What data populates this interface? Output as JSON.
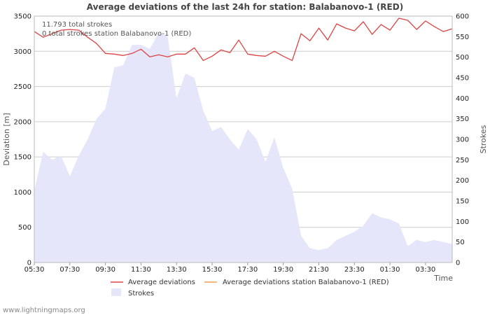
{
  "chart_data": {
    "type": "line",
    "title": "Average deviations of the last 24h for station: Balabanovo-1 (RED)",
    "xlabel": "Time",
    "ylabel_left": "Deviation  [m]",
    "ylabel_right": "Strokes",
    "ylim_left": [
      0,
      3500
    ],
    "ylim_right": [
      0,
      600
    ],
    "yticks_left": [
      "0",
      "500",
      "1000",
      "1500",
      "2000",
      "2500",
      "3000",
      "3500"
    ],
    "yticks_right": [
      "0",
      "50",
      "100",
      "150",
      "200",
      "250",
      "300",
      "350",
      "400",
      "450",
      "500",
      "550",
      "600"
    ],
    "xticks": [
      "05:30",
      "07:30",
      "09:30",
      "11:30",
      "13:30",
      "15:30",
      "17:30",
      "19:30",
      "21:30",
      "23:30",
      "01:30",
      "03:30"
    ],
    "x_hours": [
      0,
      0.5,
      1,
      1.5,
      2,
      2.5,
      3,
      3.5,
      4,
      4.5,
      5,
      5.5,
      6,
      6.5,
      7,
      7.5,
      8,
      8.5,
      9,
      9.5,
      10,
      10.5,
      11,
      11.5,
      12,
      12.5,
      13,
      13.5,
      14,
      14.5,
      15,
      15.5,
      16,
      16.5,
      17,
      17.5,
      18,
      18.5,
      19,
      19.5,
      20,
      20.5,
      21,
      21.5,
      22,
      22.5,
      23,
      23.5
    ],
    "series": [
      {
        "name": "Average deviations",
        "axis": "left",
        "color": "#dd4444",
        "values": [
          3280,
          3200,
          3250,
          3300,
          3310,
          3300,
          3200,
          3110,
          2970,
          2960,
          2940,
          2970,
          3030,
          2920,
          2950,
          2920,
          2960,
          2960,
          3050,
          2870,
          2930,
          3020,
          2980,
          3160,
          2960,
          2940,
          2930,
          3000,
          2930,
          2870,
          3250,
          3150,
          3330,
          3160,
          3390,
          3330,
          3290,
          3420,
          3240,
          3380,
          3300,
          3470,
          3440,
          3310,
          3430,
          3350,
          3280,
          3320
        ]
      },
      {
        "name": "Average deviations station Balabanovo-1 (RED)",
        "axis": "left",
        "color": "#f0a050",
        "values": []
      },
      {
        "name": "Strokes",
        "axis": "right",
        "type": "area",
        "color": "#e6e6fa",
        "values": [
          175,
          270,
          250,
          260,
          210,
          260,
          300,
          350,
          375,
          475,
          480,
          530,
          530,
          520,
          560,
          550,
          400,
          460,
          450,
          370,
          320,
          330,
          300,
          275,
          325,
          300,
          245,
          305,
          230,
          180,
          65,
          35,
          30,
          35,
          55,
          65,
          75,
          90,
          120,
          110,
          105,
          95,
          40,
          55,
          50,
          55,
          50,
          45
        ]
      }
    ],
    "annotations": [
      "11.793 total strokes",
      "0 total strokes station Balabanovo-1 (RED)"
    ],
    "legend": [
      "Average deviations",
      "Average deviations station Balabanovo-1 (RED)",
      "Strokes"
    ],
    "grid": true
  },
  "footer": "www.lightningmaps.org"
}
